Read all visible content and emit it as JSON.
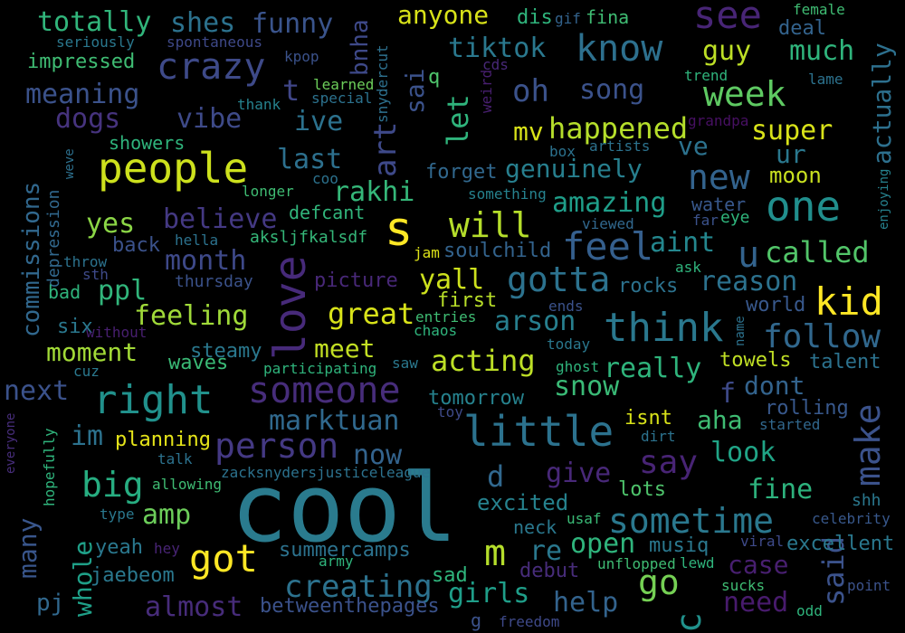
{
  "words": [
    {
      "text": "cool",
      "color": "#2a7b8e"
    },
    {
      "text": "people",
      "color": "#cde11d"
    },
    {
      "text": "s",
      "color": "#fde725"
    },
    {
      "text": "love",
      "color": "#472a7a"
    },
    {
      "text": "little",
      "color": "#2c728e"
    },
    {
      "text": "right",
      "color": "#21918c"
    },
    {
      "text": "someone",
      "color": "#472d7b"
    },
    {
      "text": "one",
      "color": "#218f8d"
    },
    {
      "text": "think",
      "color": "#2a788e"
    },
    {
      "text": "feel",
      "color": "#355f8d"
    },
    {
      "text": "crazy",
      "color": "#3e4a89"
    },
    {
      "text": "know",
      "color": "#2d708e"
    },
    {
      "text": "make",
      "color": "#3b528b"
    },
    {
      "text": "see",
      "color": "#482576"
    },
    {
      "text": "person",
      "color": "#443983"
    },
    {
      "text": "kid",
      "color": "#fde725"
    },
    {
      "text": "got",
      "color": "#fde725"
    },
    {
      "text": "sometime",
      "color": "#2a788e"
    },
    {
      "text": "will",
      "color": "#b5de2b"
    },
    {
      "text": "new",
      "color": "#33638d"
    },
    {
      "text": "week",
      "color": "#5ec962"
    },
    {
      "text": "gotta",
      "color": "#2c728e"
    },
    {
      "text": "follow",
      "color": "#31688e"
    },
    {
      "text": "big",
      "color": "#27ad81"
    },
    {
      "text": "say",
      "color": "#482475"
    },
    {
      "text": "art",
      "color": "#3e4989"
    },
    {
      "text": "commissions",
      "color": "#31688e"
    },
    {
      "text": "u",
      "color": "#33638d"
    },
    {
      "text": "let",
      "color": "#2fb47c"
    },
    {
      "text": "m",
      "color": "#b5de2b"
    },
    {
      "text": "c",
      "color": "#21918c"
    },
    {
      "text": "go",
      "color": "#75d054"
    },
    {
      "text": "called",
      "color": "#52c569"
    },
    {
      "text": "creating",
      "color": "#2c728e"
    },
    {
      "text": "marktuan",
      "color": "#30698e"
    },
    {
      "text": "open",
      "color": "#2fb47c"
    },
    {
      "text": "yall",
      "color": "#cde11d"
    },
    {
      "text": "great",
      "color": "#d8e219"
    },
    {
      "text": "aint",
      "color": "#24878e"
    },
    {
      "text": "oh",
      "color": "#3b528b"
    },
    {
      "text": "totally",
      "color": "#31b57b"
    },
    {
      "text": "shes",
      "color": "#2c728e"
    },
    {
      "text": "funny",
      "color": "#3a548c"
    },
    {
      "text": "anyone",
      "color": "#d8e219"
    },
    {
      "text": "happened",
      "color": "#b5de2b"
    },
    {
      "text": "feeling",
      "color": "#a0da39"
    },
    {
      "text": "acting",
      "color": "#bddf26"
    },
    {
      "text": "really",
      "color": "#2fb47c"
    },
    {
      "text": "snow",
      "color": "#3aba76"
    },
    {
      "text": "dont",
      "color": "#33638d"
    },
    {
      "text": "look",
      "color": "#20a486"
    },
    {
      "text": "fine",
      "color": "#2db27d"
    },
    {
      "text": "said",
      "color": "#3b528b"
    },
    {
      "text": "girls",
      "color": "#1f9e89"
    },
    {
      "text": "help",
      "color": "#33638d"
    },
    {
      "text": "need",
      "color": "#481b6d"
    },
    {
      "text": "case",
      "color": "#481f70"
    },
    {
      "text": "almost",
      "color": "#472c7a"
    },
    {
      "text": "whole",
      "color": "#1fa088"
    },
    {
      "text": "many",
      "color": "#39568c"
    },
    {
      "text": "amp",
      "color": "#6ccd5a"
    },
    {
      "text": "reason",
      "color": "#2c728e"
    },
    {
      "text": "amazing",
      "color": "#1f9e89"
    },
    {
      "text": "genuinely",
      "color": "#277f8e"
    },
    {
      "text": "rakhi",
      "color": "#35b779"
    },
    {
      "text": "last",
      "color": "#2d708e"
    },
    {
      "text": "believe",
      "color": "#443983"
    },
    {
      "text": "month",
      "color": "#3e4989"
    },
    {
      "text": "ppl",
      "color": "#31b57b"
    },
    {
      "text": "meet",
      "color": "#c2df23"
    },
    {
      "text": "moment",
      "color": "#a2da37"
    },
    {
      "text": "arson",
      "color": "#277f8e"
    },
    {
      "text": "ive",
      "color": "#2c728e"
    },
    {
      "text": "vibe",
      "color": "#3e4a89"
    },
    {
      "text": "meaning",
      "color": "#3b528b"
    },
    {
      "text": "dogs",
      "color": "#46337e"
    },
    {
      "text": "actually",
      "color": "#2d708e"
    },
    {
      "text": "super",
      "color": "#d8e219"
    },
    {
      "text": "ur",
      "color": "#2a788e"
    },
    {
      "text": "guy",
      "color": "#bddf26"
    },
    {
      "text": "much",
      "color": "#2fb47c"
    },
    {
      "text": "deal",
      "color": "#33638d"
    },
    {
      "text": "song",
      "color": "#3b528b"
    },
    {
      "text": "tiktok",
      "color": "#2a788e"
    },
    {
      "text": "bnha",
      "color": "#3e4989"
    },
    {
      "text": "sai",
      "color": "#3b528b"
    },
    {
      "text": "t",
      "color": "#404688"
    },
    {
      "text": "mv",
      "color": "#d8e219"
    },
    {
      "text": "ve",
      "color": "#2c728e"
    },
    {
      "text": "next",
      "color": "#3b528b"
    },
    {
      "text": "im",
      "color": "#2c728e"
    },
    {
      "text": "yes",
      "color": "#8bd646"
    },
    {
      "text": "now",
      "color": "#33638d"
    },
    {
      "text": "d",
      "color": "#31688e"
    },
    {
      "text": "give",
      "color": "#482878"
    },
    {
      "text": "aha",
      "color": "#3fbc73"
    },
    {
      "text": "f",
      "color": "#3e4a89"
    },
    {
      "text": "moon",
      "color": "#c8e020"
    },
    {
      "text": "impressed",
      "color": "#3fbc73"
    },
    {
      "text": "planning",
      "color": "#e5e419"
    },
    {
      "text": "summercamps",
      "color": "#2c728e"
    },
    {
      "text": "pj",
      "color": "#31688e"
    },
    {
      "text": "yeah",
      "color": "#2a788e"
    },
    {
      "text": "jaebeom",
      "color": "#2a788e"
    },
    {
      "text": "sad",
      "color": "#2fb47c"
    },
    {
      "text": "re",
      "color": "#2a788e"
    },
    {
      "text": "lots",
      "color": "#4ec36b"
    },
    {
      "text": "excited",
      "color": "#26828e"
    },
    {
      "text": "tomorrow",
      "color": "#26828e"
    },
    {
      "text": "rolling",
      "color": "#38588c"
    },
    {
      "text": "towels",
      "color": "#c0df25"
    },
    {
      "text": "talent",
      "color": "#2c728e"
    },
    {
      "text": "world",
      "color": "#38588c"
    },
    {
      "text": "rocks",
      "color": "#2c728e"
    },
    {
      "text": "isnt",
      "color": "#d8e219"
    },
    {
      "text": "excellent",
      "color": "#2a788e"
    },
    {
      "text": "debut",
      "color": "#472c7a"
    },
    {
      "text": "musiq",
      "color": "#2a788e"
    },
    {
      "text": "thursday",
      "color": "#3b528b"
    },
    {
      "text": "first",
      "color": "#b8de29"
    },
    {
      "text": "forget",
      "color": "#31688e"
    },
    {
      "text": "picture",
      "color": "#482878"
    },
    {
      "text": "soulchild",
      "color": "#33638d"
    },
    {
      "text": "showers",
      "color": "#2fb47c"
    },
    {
      "text": "depression",
      "color": "#31688e"
    },
    {
      "text": "steamy",
      "color": "#2a788e"
    },
    {
      "text": "waves",
      "color": "#3aba76"
    },
    {
      "text": "back",
      "color": "#3b528b"
    },
    {
      "text": "six",
      "color": "#2a788e"
    },
    {
      "text": "bad",
      "color": "#2fb47c"
    },
    {
      "text": "water",
      "color": "#38588c"
    },
    {
      "text": "defcant",
      "color": "#31b57b"
    },
    {
      "text": "aksljfkalsdf",
      "color": "#35b779"
    },
    {
      "text": "kpop",
      "color": "#3b528b"
    },
    {
      "text": "learned",
      "color": "#6ccd5a"
    },
    {
      "text": "special",
      "color": "#2c728e"
    },
    {
      "text": "q",
      "color": "#4ec36b"
    },
    {
      "text": "snydercut",
      "color": "#2d708e"
    },
    {
      "text": "weird",
      "color": "#481f70"
    },
    {
      "text": "cds",
      "color": "#482878"
    },
    {
      "text": "thank",
      "color": "#26828e"
    },
    {
      "text": "seriously",
      "color": "#2a788e"
    },
    {
      "text": "spontaneous",
      "color": "#3e4989"
    },
    {
      "text": "dis",
      "color": "#2fb47c"
    },
    {
      "text": "gif",
      "color": "#33638d"
    },
    {
      "text": "fina",
      "color": "#3fbc73"
    },
    {
      "text": "female",
      "color": "#3fbc73"
    },
    {
      "text": "lame",
      "color": "#2c728e"
    },
    {
      "text": "trend",
      "color": "#2fb47c"
    },
    {
      "text": "grandpa",
      "color": "#471063"
    },
    {
      "text": "enjoying",
      "color": "#26828e"
    },
    {
      "text": "artists",
      "color": "#2c728e"
    },
    {
      "text": "box",
      "color": "#2c728e"
    },
    {
      "text": "something",
      "color": "#26828e"
    },
    {
      "text": "viewed",
      "color": "#31688e"
    },
    {
      "text": "far",
      "color": "#3b528b"
    },
    {
      "text": "eye",
      "color": "#2fb47c"
    },
    {
      "text": "ask",
      "color": "#2fb47c"
    },
    {
      "text": "weve",
      "color": "#2d708e"
    },
    {
      "text": "coo",
      "color": "#2c728e"
    },
    {
      "text": "longer",
      "color": "#3fbc73"
    },
    {
      "text": "hella",
      "color": "#2c728e"
    },
    {
      "text": "throw",
      "color": "#2c728e"
    },
    {
      "text": "sth",
      "color": "#3e4a89"
    },
    {
      "text": "jam",
      "color": "#dde318"
    },
    {
      "text": "without",
      "color": "#481f70"
    },
    {
      "text": "entries",
      "color": "#3fbc73"
    },
    {
      "text": "chaos",
      "color": "#2fb47c"
    },
    {
      "text": "ends",
      "color": "#3b528b"
    },
    {
      "text": "today",
      "color": "#2a788e"
    },
    {
      "text": "ghost",
      "color": "#2fb47c"
    },
    {
      "text": "name",
      "color": "#2c728e"
    },
    {
      "text": "cuz",
      "color": "#2a788e"
    },
    {
      "text": "participating",
      "color": "#2fb47c"
    },
    {
      "text": "saw",
      "color": "#2a788e"
    },
    {
      "text": "everyone",
      "color": "#472d7b"
    },
    {
      "text": "hopefully",
      "color": "#2fb47c"
    },
    {
      "text": "talk",
      "color": "#2c728e"
    },
    {
      "text": "allowing",
      "color": "#3fbc73"
    },
    {
      "text": "zacksnydersjusticeleague",
      "color": "#2c728e"
    },
    {
      "text": "toy",
      "color": "#3e4a89"
    },
    {
      "text": "dirt",
      "color": "#2c728e"
    },
    {
      "text": "started",
      "color": "#31688e"
    },
    {
      "text": "type",
      "color": "#2a788e"
    },
    {
      "text": "hey",
      "color": "#482475"
    },
    {
      "text": "army",
      "color": "#2fb47c"
    },
    {
      "text": "betweenthepages",
      "color": "#3b528b"
    },
    {
      "text": "shh",
      "color": "#2a788e"
    },
    {
      "text": "neck",
      "color": "#2a788e"
    },
    {
      "text": "usaf",
      "color": "#3aba76"
    },
    {
      "text": "viral",
      "color": "#3e4a89"
    },
    {
      "text": "celebrity",
      "color": "#38588c"
    },
    {
      "text": "unflopped",
      "color": "#3fbc73"
    },
    {
      "text": "lewd",
      "color": "#2fb47c"
    },
    {
      "text": "sucks",
      "color": "#3fbc73"
    },
    {
      "text": "odd",
      "color": "#2fb47c"
    },
    {
      "text": "point",
      "color": "#3b528b"
    },
    {
      "text": "freedom",
      "color": "#3e4989"
    },
    {
      "text": "g",
      "color": "#3b528b"
    }
  ]
}
